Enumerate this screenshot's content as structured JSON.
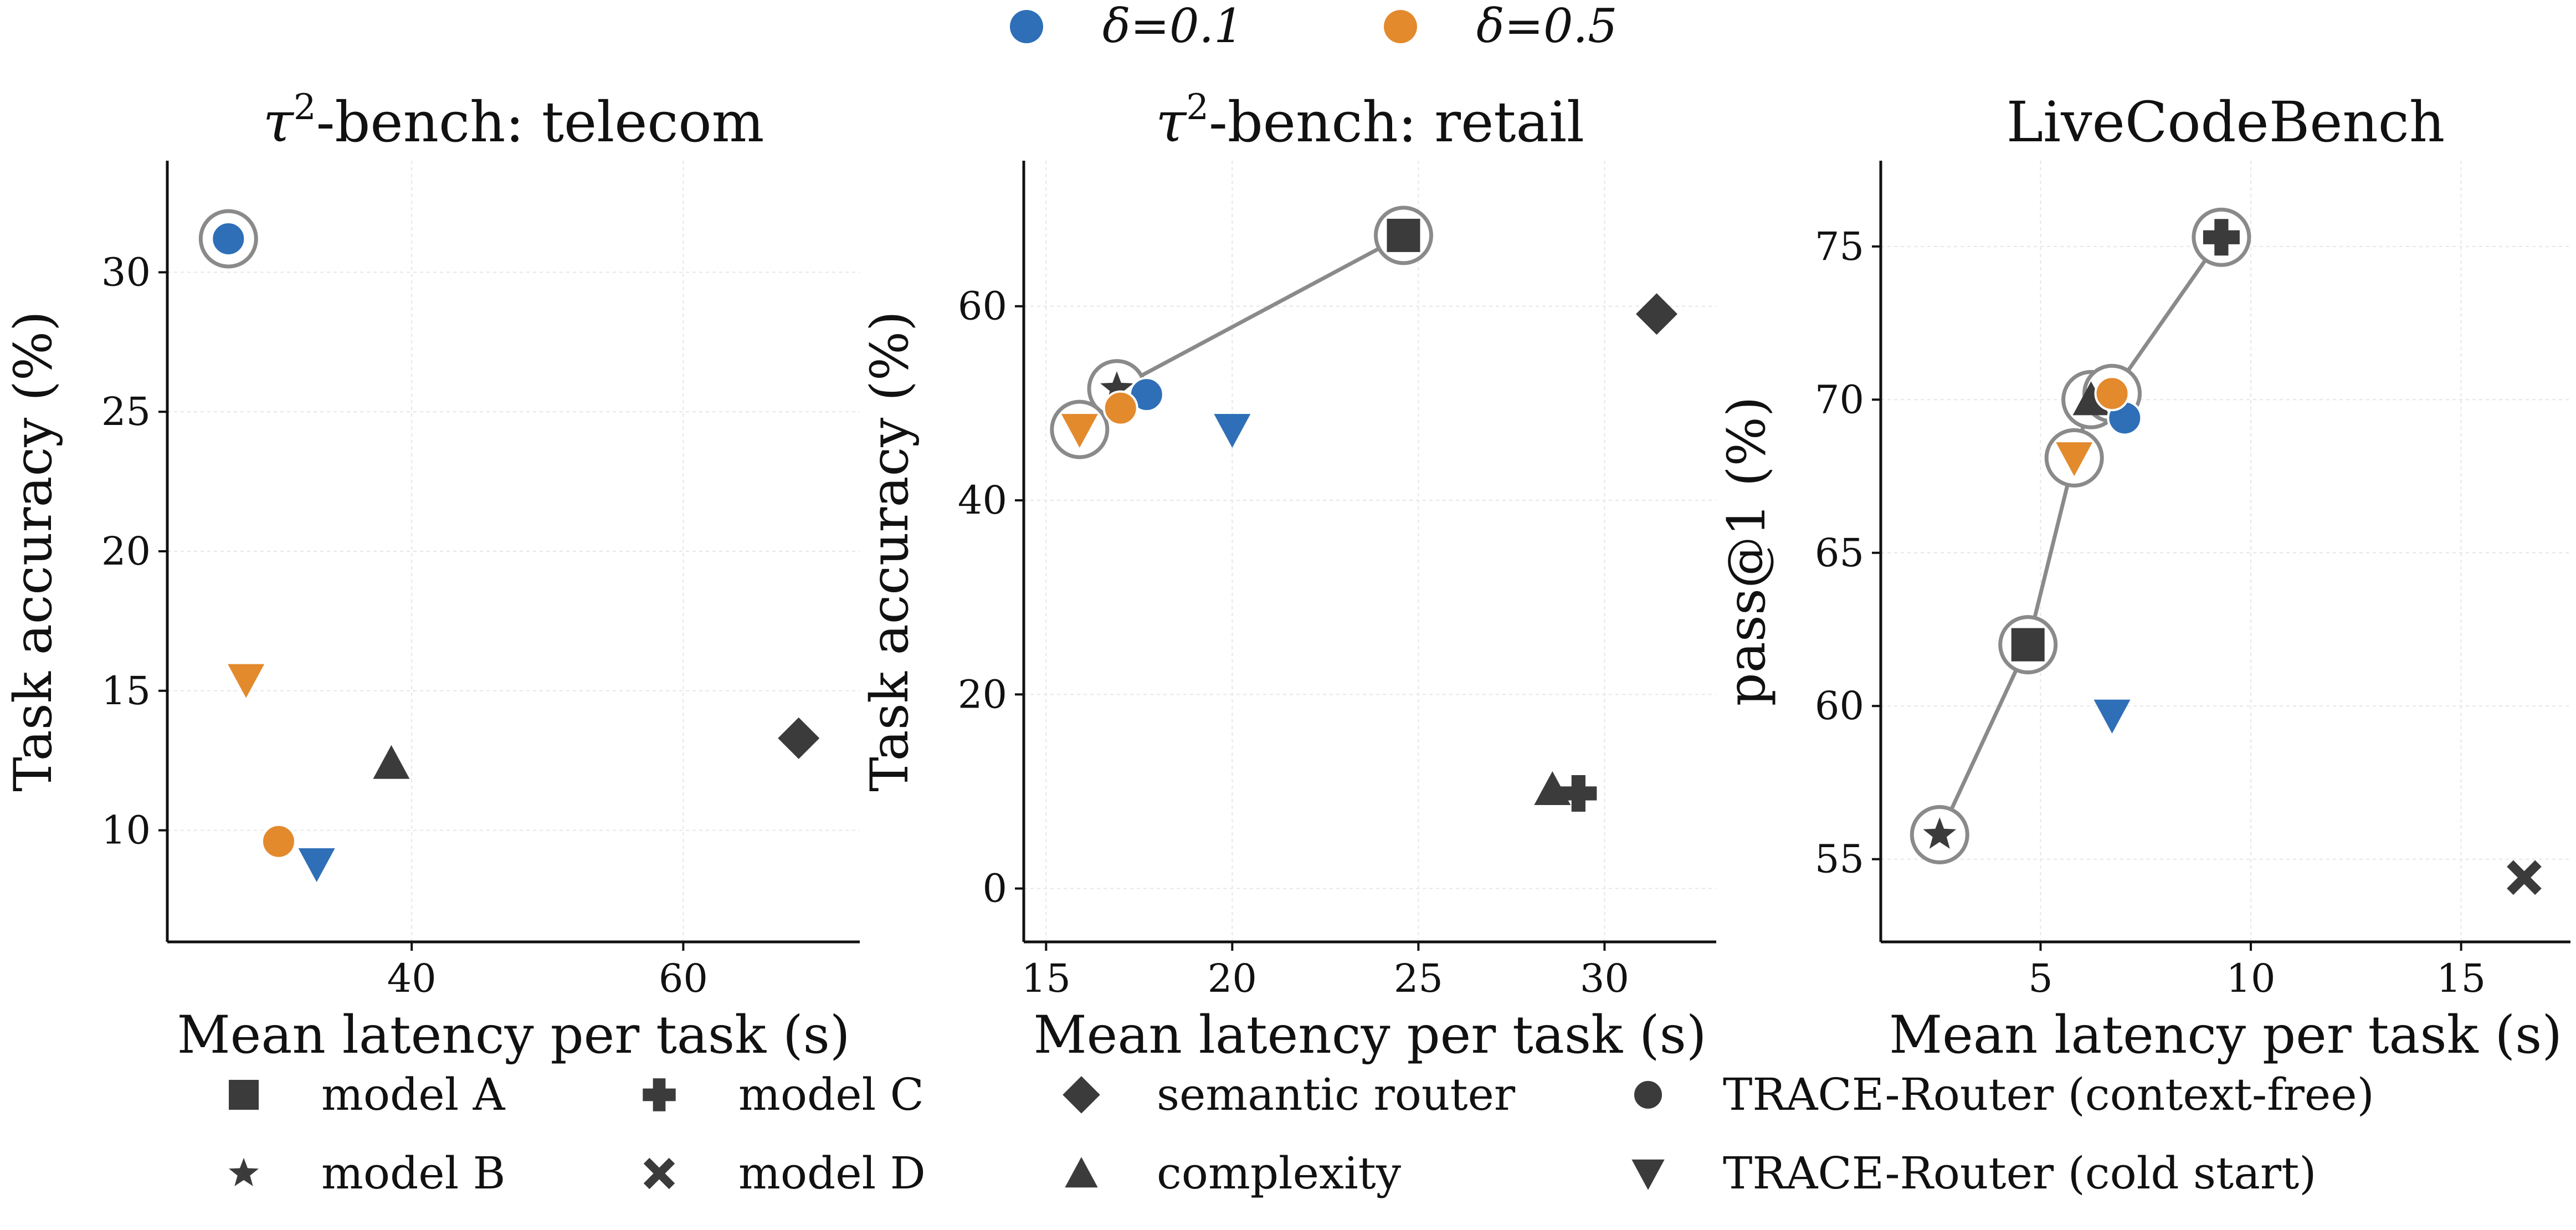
{
  "colors": {
    "delta_0_1": "#2e6fb7",
    "delta_0_5": "#e38a2d",
    "baseline": "#3b3b3b",
    "pareto": "#8a8a8a"
  },
  "top_legend": [
    {
      "key": "delta_0_1",
      "label": "δ=0.1",
      "color": "#2e6fb7"
    },
    {
      "key": "delta_0_5",
      "label": "δ=0.5",
      "color": "#e38a2d"
    }
  ],
  "marker_legend": [
    {
      "marker": "square",
      "label": "model A"
    },
    {
      "marker": "plus",
      "label": "model C"
    },
    {
      "marker": "diamond",
      "label": "semantic router"
    },
    {
      "marker": "circle",
      "label": "TRACE-Router (context-free)"
    },
    {
      "marker": "star",
      "label": "model B"
    },
    {
      "marker": "x",
      "label": "model D"
    },
    {
      "marker": "triangle-up",
      "label": "complexity"
    },
    {
      "marker": "triangle-down",
      "label": "TRACE-Router (cold start)"
    }
  ],
  "chart_data": [
    {
      "type": "scatter",
      "title": "τ²-bench: telecom",
      "xlabel": "Mean latency per task (s)",
      "ylabel": "Task accuracy (%)",
      "xlim": [
        22,
        73
      ],
      "ylim": [
        6,
        34
      ],
      "xticks": [
        40,
        60
      ],
      "yticks": [
        10,
        15,
        20,
        25,
        30
      ],
      "grid": true,
      "points": [
        {
          "x": 68.5,
          "y": 13.3,
          "marker": "diamond",
          "color": "baseline"
        },
        {
          "x": 38.5,
          "y": 12.4,
          "marker": "triangle-up",
          "color": "baseline"
        },
        {
          "x": 26.5,
          "y": 31.2,
          "marker": "circle",
          "color": "delta_0_1",
          "pareto": true
        },
        {
          "x": 33.0,
          "y": 8.8,
          "marker": "triangle-down",
          "color": "delta_0_1"
        },
        {
          "x": 30.2,
          "y": 9.6,
          "marker": "circle",
          "color": "delta_0_5"
        },
        {
          "x": 27.8,
          "y": 15.4,
          "marker": "triangle-down",
          "color": "delta_0_5"
        }
      ],
      "frontier": []
    },
    {
      "type": "scatter",
      "title": "τ²-bench: retail",
      "xlabel": "Mean latency per task (s)",
      "ylabel": "Task accuracy (%)",
      "xlim": [
        14.4,
        33
      ],
      "ylim": [
        -5.5,
        75
      ],
      "xticks": [
        15,
        20,
        25,
        30
      ],
      "yticks": [
        0,
        20,
        40,
        60
      ],
      "grid": true,
      "points": [
        {
          "x": 24.6,
          "y": 67.3,
          "marker": "square",
          "color": "baseline",
          "pareto": true
        },
        {
          "x": 16.9,
          "y": 51.5,
          "marker": "star",
          "color": "baseline",
          "pareto": true
        },
        {
          "x": 29.3,
          "y": 9.8,
          "marker": "plus",
          "color": "baseline"
        },
        {
          "x": 31.4,
          "y": 59.2,
          "marker": "diamond",
          "color": "baseline"
        },
        {
          "x": 28.6,
          "y": 10.2,
          "marker": "triangle-up",
          "color": "baseline"
        },
        {
          "x": 17.7,
          "y": 50.9,
          "marker": "circle",
          "color": "delta_0_1"
        },
        {
          "x": 20.0,
          "y": 47.3,
          "marker": "triangle-down",
          "color": "delta_0_1"
        },
        {
          "x": 17.0,
          "y": 49.5,
          "marker": "circle",
          "color": "delta_0_5"
        },
        {
          "x": 15.9,
          "y": 47.3,
          "marker": "triangle-down",
          "color": "delta_0_5",
          "pareto": true
        }
      ],
      "frontier": [
        [
          15.9,
          47.3
        ],
        [
          16.9,
          51.5
        ],
        [
          24.6,
          67.3
        ]
      ]
    },
    {
      "type": "scatter",
      "title": "LiveCodeBench",
      "xlabel": "Mean latency per task (s)",
      "ylabel": "pass@1 (%)",
      "xlim": [
        1.2,
        17.6
      ],
      "ylim": [
        52.3,
        77.8
      ],
      "xticks": [
        5,
        10,
        15
      ],
      "yticks": [
        55,
        60,
        65,
        70,
        75
      ],
      "grid": true,
      "points": [
        {
          "x": 4.7,
          "y": 62.0,
          "marker": "square",
          "color": "baseline",
          "pareto": true
        },
        {
          "x": 2.6,
          "y": 55.8,
          "marker": "star",
          "color": "baseline",
          "pareto": true
        },
        {
          "x": 9.3,
          "y": 75.3,
          "marker": "plus",
          "color": "baseline",
          "pareto": true
        },
        {
          "x": 16.5,
          "y": 54.4,
          "marker": "x",
          "color": "baseline"
        },
        {
          "x": 6.2,
          "y": 70.0,
          "marker": "triangle-up",
          "color": "baseline",
          "pareto": true
        },
        {
          "x": 7.0,
          "y": 69.4,
          "marker": "circle",
          "color": "delta_0_1"
        },
        {
          "x": 6.7,
          "y": 59.7,
          "marker": "triangle-down",
          "color": "delta_0_1"
        },
        {
          "x": 6.7,
          "y": 70.2,
          "marker": "circle",
          "color": "delta_0_5",
          "pareto": true
        },
        {
          "x": 5.8,
          "y": 68.1,
          "marker": "triangle-down",
          "color": "delta_0_5",
          "pareto": true
        }
      ],
      "frontier": [
        [
          2.6,
          55.8
        ],
        [
          4.7,
          62.0
        ],
        [
          5.8,
          68.1
        ],
        [
          6.2,
          70.0
        ],
        [
          6.7,
          70.2
        ],
        [
          9.3,
          75.3
        ]
      ]
    }
  ]
}
